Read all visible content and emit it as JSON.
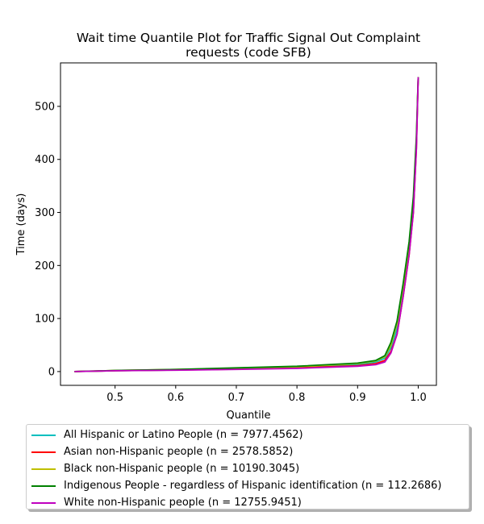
{
  "chart_data": {
    "type": "line",
    "title_line1": "Wait time Quantile Plot for Traffic Signal Out Complaint",
    "title_line2": "requests (code SFB)",
    "xlabel": "Quantile",
    "ylabel": "Time (days)",
    "xlim": [
      0.41,
      1.03
    ],
    "ylim": [
      -26,
      582
    ],
    "xticks": [
      0.5,
      0.6,
      0.7,
      0.8,
      0.9,
      1.0
    ],
    "xtick_labels": [
      "0.5",
      "0.6",
      "0.7",
      "0.8",
      "0.9",
      "1.0"
    ],
    "yticks": [
      0,
      100,
      200,
      300,
      400,
      500
    ],
    "ytick_labels": [
      "0",
      "100",
      "200",
      "300",
      "400",
      "500"
    ],
    "grid": false,
    "legend_position": "below",
    "series": [
      {
        "name": "All Hispanic or Latino People (n = 7977.4562)",
        "color": "#00bfbf",
        "x": [
          0.433,
          0.5,
          0.6,
          0.7,
          0.8,
          0.9,
          0.93,
          0.945,
          0.955,
          0.965,
          0.975,
          0.985,
          0.992,
          0.997,
          1.0
        ],
        "y": [
          0,
          1.5,
          3,
          5,
          8,
          13,
          18,
          25,
          45,
          80,
          150,
          230,
          310,
          430,
          555
        ]
      },
      {
        "name": "Asian non-Hispanic people (n = 2578.5852)",
        "color": "#ff0000",
        "x": [
          0.433,
          0.5,
          0.6,
          0.7,
          0.8,
          0.9,
          0.93,
          0.945,
          0.955,
          0.965,
          0.975,
          0.985,
          0.992,
          0.997,
          1.0
        ],
        "y": [
          0,
          1.5,
          3,
          4.5,
          7,
          11,
          15,
          21,
          38,
          70,
          140,
          220,
          300,
          420,
          555
        ]
      },
      {
        "name": "Black non-Hispanic people (n = 10190.3045)",
        "color": "#bfbf00",
        "x": [
          0.433,
          0.5,
          0.6,
          0.7,
          0.8,
          0.9,
          0.93,
          0.945,
          0.955,
          0.965,
          0.975,
          0.985,
          0.992,
          0.997,
          1.0
        ],
        "y": [
          0,
          2,
          4,
          6,
          9,
          15,
          20,
          28,
          50,
          90,
          160,
          240,
          320,
          440,
          555
        ]
      },
      {
        "name": "Indigenous People - regardless of Hispanic identification (n = 112.2686)",
        "color": "#008000",
        "x": [
          0.433,
          0.5,
          0.6,
          0.7,
          0.8,
          0.9,
          0.93,
          0.945,
          0.955,
          0.965,
          0.975,
          0.985,
          0.992,
          0.997,
          1.0
        ],
        "y": [
          0,
          2,
          4,
          7,
          10,
          16,
          21,
          30,
          55,
          95,
          165,
          245,
          330,
          445,
          555
        ]
      },
      {
        "name": "White non-Hispanic people (n = 12755.9451)",
        "color": "#bf00bf",
        "x": [
          0.433,
          0.5,
          0.6,
          0.7,
          0.8,
          0.9,
          0.93,
          0.945,
          0.955,
          0.965,
          0.975,
          0.985,
          0.992,
          0.997,
          1.0
        ],
        "y": [
          0,
          1.5,
          2.5,
          4,
          6,
          10,
          13,
          18,
          35,
          70,
          140,
          220,
          300,
          420,
          555
        ]
      }
    ]
  }
}
